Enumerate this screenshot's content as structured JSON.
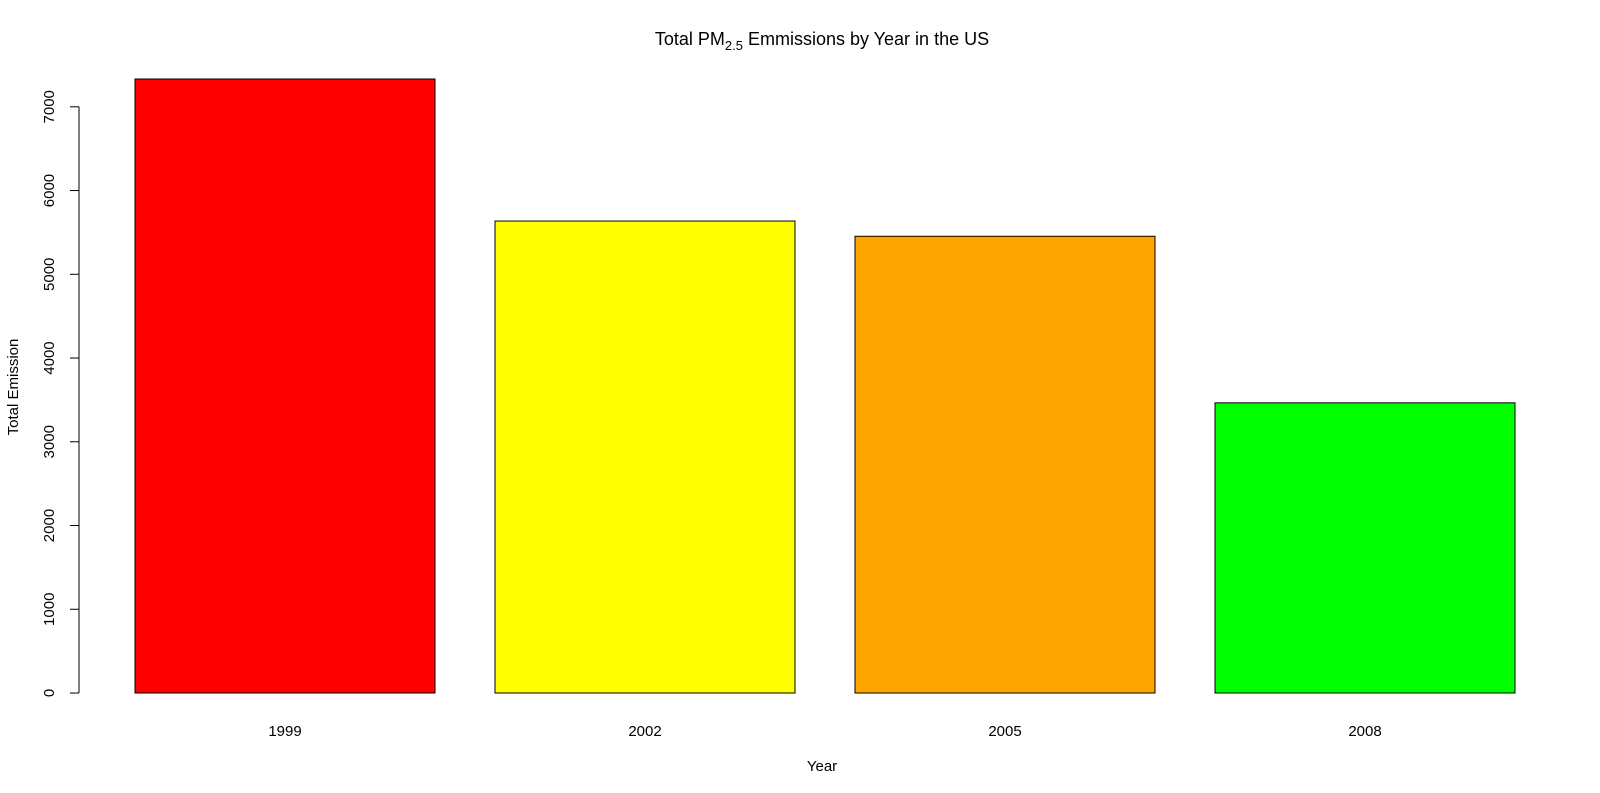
{
  "chart_data": {
    "type": "bar",
    "title": {
      "prefix": "Total PM",
      "subscript": "2.5",
      "suffix": " Emmissions by Year in the US"
    },
    "xlabel": "Year",
    "ylabel": "Total Emission",
    "categories": [
      "1999",
      "2002",
      "2005",
      "2008"
    ],
    "values": [
      7332,
      5636,
      5454,
      3465
    ],
    "colors": [
      "#FF0000",
      "#FFFF00",
      "#FFA500",
      "#00FF00"
    ],
    "ylim": [
      0,
      7332
    ],
    "yticks": [
      0,
      1000,
      2000,
      3000,
      4000,
      5000,
      6000,
      7000
    ],
    "grid": false,
    "legend": "none"
  }
}
